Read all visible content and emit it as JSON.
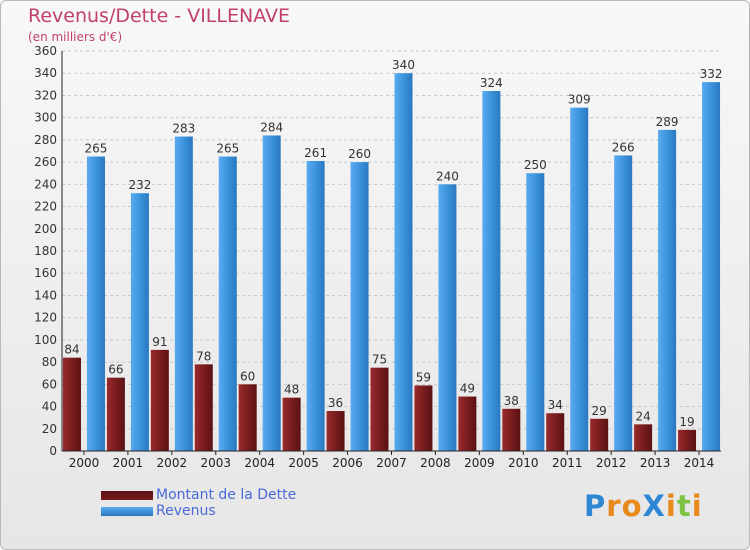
{
  "chart_data": {
    "type": "bar",
    "title": "Revenus/Dette - VILLENAVE",
    "subtitle": "(en milliers d'€)",
    "categories": [
      "2000",
      "2001",
      "2002",
      "2003",
      "2004",
      "2005",
      "2006",
      "2007",
      "2008",
      "2009",
      "2010",
      "2011",
      "2012",
      "2013",
      "2014"
    ],
    "series": [
      {
        "name": "Montant de la Dette",
        "color": "#7a1c1e",
        "values": [
          84,
          66,
          91,
          78,
          60,
          48,
          36,
          75,
          59,
          49,
          38,
          34,
          29,
          24,
          19
        ]
      },
      {
        "name": "Revenus",
        "color": "#3b94dc",
        "values": [
          265,
          232,
          283,
          265,
          284,
          261,
          260,
          340,
          240,
          324,
          250,
          309,
          266,
          289,
          332
        ]
      }
    ],
    "ylim": [
      0,
      360
    ],
    "ytick_step": 20,
    "grid": true,
    "legend_position": "bottom-left"
  },
  "logo": {
    "text": "ProXiti",
    "letters": [
      {
        "ch": "P",
        "color": "#2e86d4"
      },
      {
        "ch": "r",
        "color": "#e8891c"
      },
      {
        "ch": "o",
        "color": "#e8891c"
      },
      {
        "ch": "X",
        "color": "#2e86d4"
      },
      {
        "ch": "i",
        "color": "#e8891c"
      },
      {
        "ch": "t",
        "color": "#7cc243"
      },
      {
        "ch": "i",
        "color": "#e8891c"
      }
    ]
  }
}
